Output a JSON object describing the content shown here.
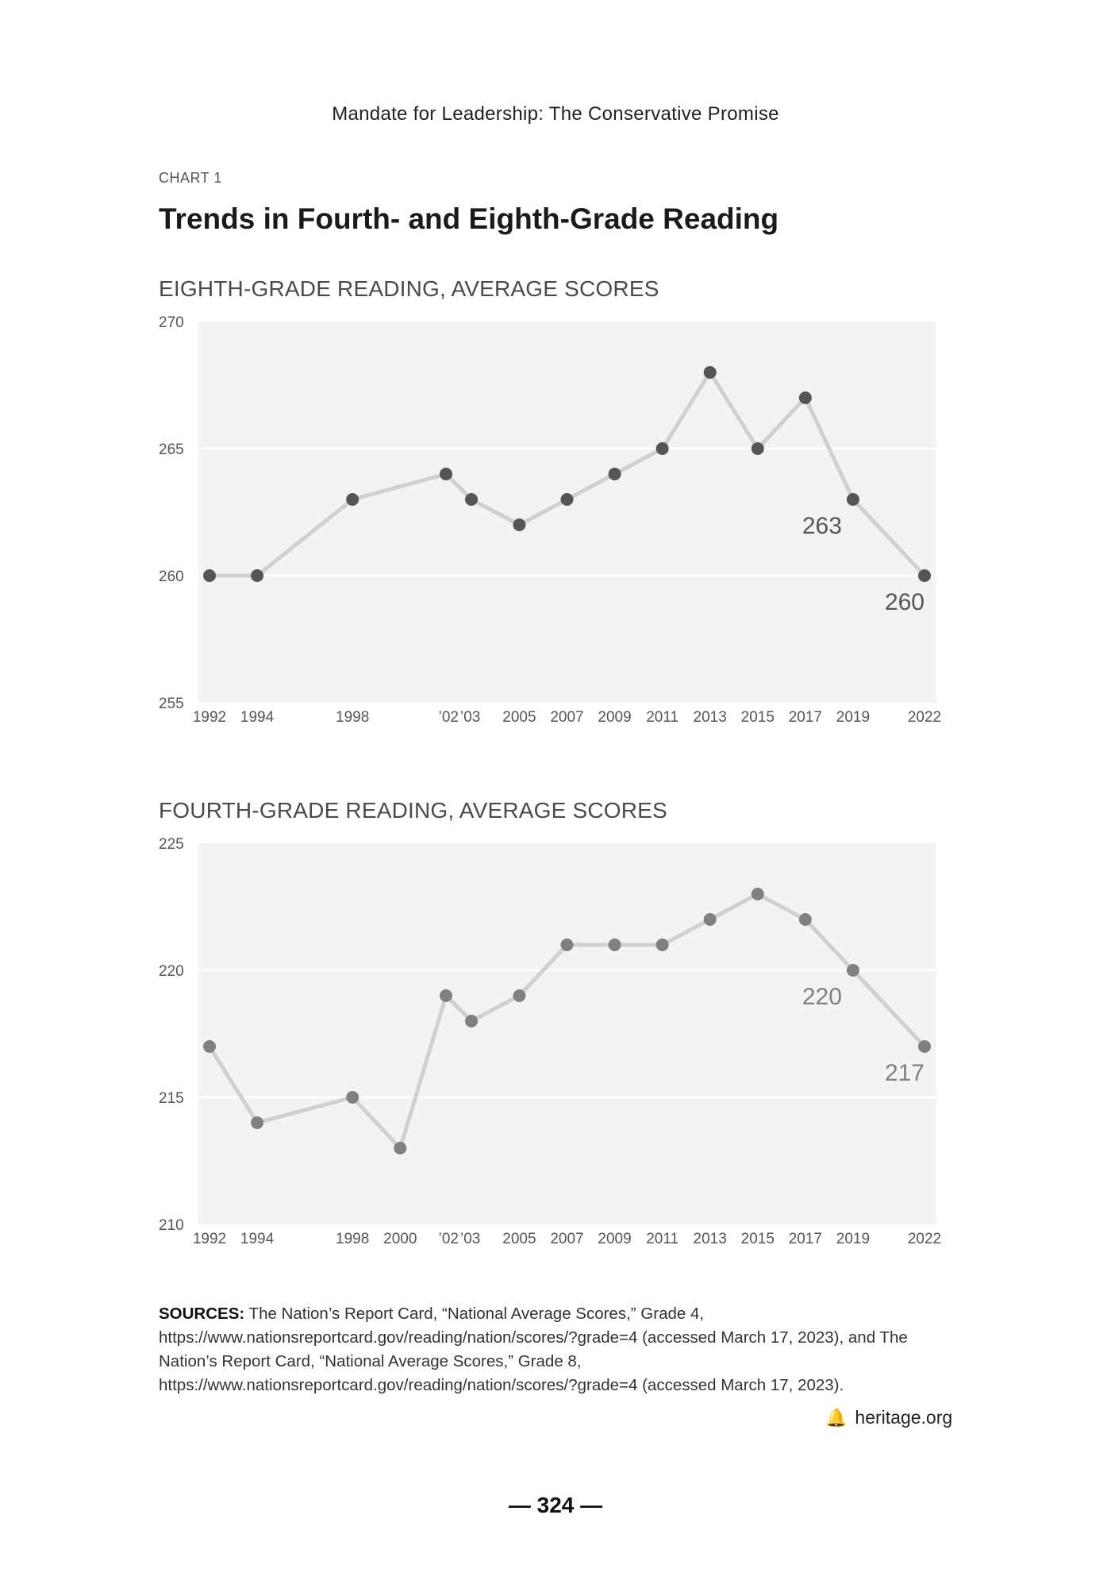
{
  "header": {
    "running_title": "Mandate for Leadership: The Conservative Promise"
  },
  "chart_label": "CHART 1",
  "chart_title": "Trends in Fourth- and Eighth-Grade Reading",
  "chart_data": [
    {
      "type": "line",
      "title": "EIGHTH-GRADE READING, AVERAGE SCORES",
      "xlabel": "",
      "ylabel": "",
      "ylim": [
        255,
        270
      ],
      "yticks": [
        "270",
        "265",
        "260",
        "255"
      ],
      "grid": true,
      "x": [
        1992,
        1994,
        1998,
        2002,
        2003,
        2005,
        2007,
        2009,
        2011,
        2013,
        2015,
        2017,
        2019,
        2022
      ],
      "x_tick_labels": [
        "1992",
        "1994",
        "1998",
        "’02",
        "’03",
        "2005",
        "2007",
        "2009",
        "2011",
        "2013",
        "2015",
        "2017",
        "2019",
        "2022"
      ],
      "values": [
        260,
        260,
        263,
        264,
        263,
        262,
        263,
        264,
        265,
        268,
        265,
        267,
        263,
        260
      ],
      "point_color": "#555555",
      "line_color": "#d0d0d0",
      "annotations": [
        {
          "text": "263",
          "x": 2019,
          "value": 263
        },
        {
          "text": "260",
          "x": 2022,
          "value": 260
        }
      ]
    },
    {
      "type": "line",
      "title": "FOURTH-GRADE READING, AVERAGE SCORES",
      "xlabel": "",
      "ylabel": "",
      "ylim": [
        210,
        225
      ],
      "yticks": [
        "225",
        "220",
        "215",
        "210"
      ],
      "grid": true,
      "x": [
        1992,
        1994,
        1998,
        2000,
        2002,
        2003,
        2005,
        2007,
        2009,
        2011,
        2013,
        2015,
        2017,
        2019,
        2022
      ],
      "x_tick_labels": [
        "1992",
        "1994",
        "1998",
        "2000",
        "’02",
        "’03",
        "2005",
        "2007",
        "2009",
        "2011",
        "2013",
        "2015",
        "2017",
        "2019",
        "2022"
      ],
      "values": [
        217,
        214,
        215,
        213,
        219,
        218,
        219,
        221,
        221,
        221,
        222,
        223,
        222,
        220,
        217
      ],
      "point_color": "#808080",
      "line_color": "#d0d0d0",
      "annotations": [
        {
          "text": "220",
          "x": 2019,
          "value": 220
        },
        {
          "text": "217",
          "x": 2022,
          "value": 217
        }
      ]
    }
  ],
  "sources": {
    "label": "SOURCES:",
    "text": " The Nation’s Report Card, “National Average Scores,” Grade 4, https://www.nationsreportcard.gov/reading/nation/scores/?grade=4 (accessed March 17, 2023), and The Nation’s Report Card, “National Average Scores,” Grade 8, https://www.nationsreportcard.gov/reading/nation/scores/?grade=4 (accessed March 17, 2023)."
  },
  "footer": {
    "site": "heritage.org",
    "icon": "liberty-bell-icon",
    "page_number": "— 324 —"
  }
}
